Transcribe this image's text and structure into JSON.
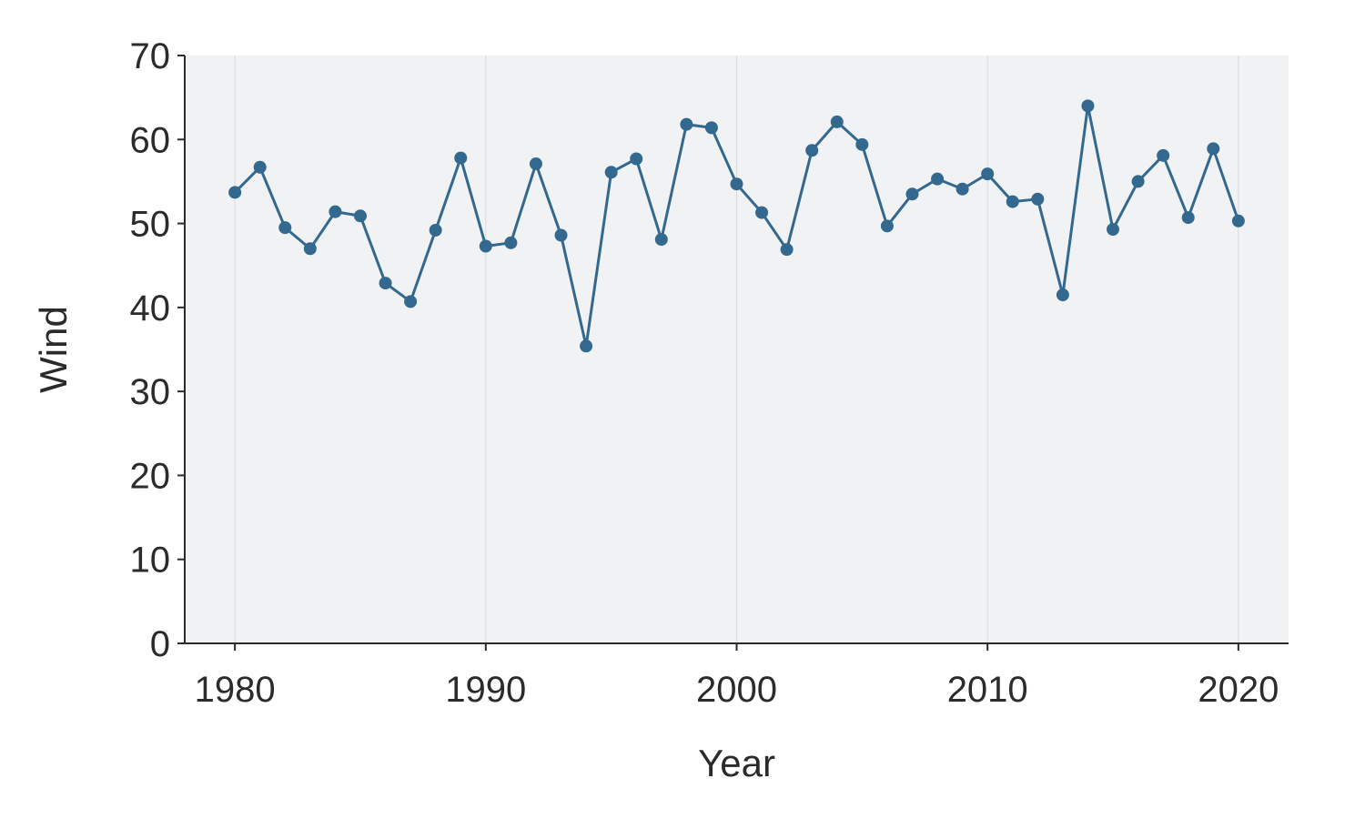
{
  "chart_data": {
    "type": "line",
    "title": "",
    "xlabel": "Year",
    "ylabel": "Wind",
    "xlim": [
      1978,
      2022
    ],
    "ylim": [
      0,
      70
    ],
    "xticks": [
      1980,
      1990,
      2000,
      2010,
      2020
    ],
    "yticks": [
      0,
      10,
      20,
      30,
      40,
      50,
      60,
      70
    ],
    "grid": "vertical gridlines at x ticks",
    "legend": "none",
    "colors": {
      "line": "#33688f",
      "panel_background": "#f1f2f4",
      "gridline": "#d9d9d9",
      "axis": "#2b2b2b"
    },
    "series": [
      {
        "x": [
          1980,
          1981,
          1982,
          1983,
          1984,
          1985,
          1986,
          1987,
          1988,
          1989,
          1990,
          1991,
          1992,
          1993,
          1994,
          1995,
          1996,
          1997,
          1998,
          1999,
          2000,
          2001,
          2002,
          2003,
          2004,
          2005,
          2006,
          2007,
          2008,
          2009,
          2010,
          2011,
          2012,
          2013,
          2014,
          2015,
          2016,
          2017,
          2018,
          2019,
          2020
        ],
        "values": [
          53.7,
          56.7,
          49.5,
          47.0,
          51.4,
          50.9,
          42.9,
          40.7,
          49.2,
          57.8,
          47.3,
          47.7,
          57.1,
          48.6,
          35.4,
          56.1,
          57.7,
          48.1,
          61.8,
          61.4,
          54.7,
          51.3,
          46.9,
          58.7,
          62.1,
          59.4,
          49.7,
          53.5,
          55.3,
          54.1,
          55.9,
          52.6,
          52.9,
          41.5,
          64.0,
          49.3,
          55.0,
          58.1,
          50.7,
          58.9,
          50.3
        ]
      }
    ]
  }
}
